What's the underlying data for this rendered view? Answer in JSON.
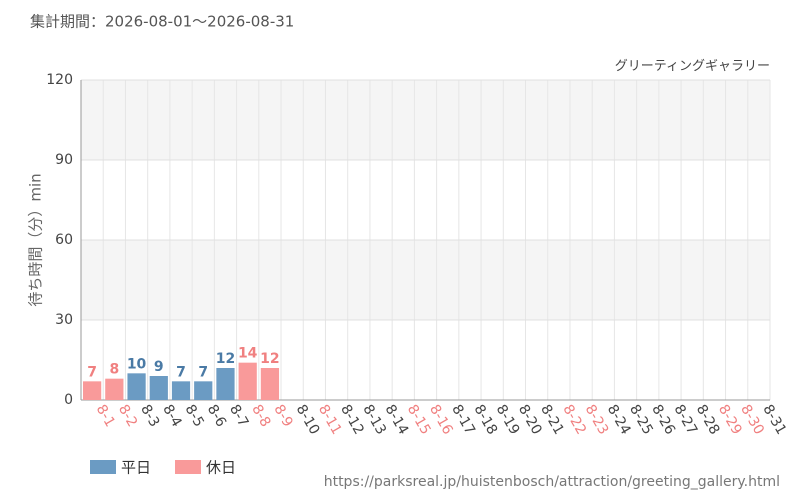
{
  "chart_data": {
    "type": "bar",
    "subtitle": "集計期間：2026-08-01～2026-08-31",
    "label": "グリーティングギャラリー",
    "y_label": "待ち時間（分）min",
    "source": "https://parksreal.jp/huistenbosch/attraction/greeting_gallery.html",
    "categories": [
      "8-1",
      "8-2",
      "8-3",
      "8-4",
      "8-5",
      "8-6",
      "8-7",
      "8-8",
      "8-9",
      "8-10",
      "8-11",
      "8-12",
      "8-13",
      "8-14",
      "8-15",
      "8-16",
      "8-17",
      "8-18",
      "8-19",
      "8-20",
      "8-21",
      "8-22",
      "8-23",
      "8-24",
      "8-25",
      "8-26",
      "8-27",
      "8-28",
      "8-29",
      "8-30",
      "8-31"
    ],
    "category_colors": [
      "#f08080",
      "#f08080",
      "#444",
      "#444",
      "#444",
      "#444",
      "#444",
      "#f08080",
      "#f08080",
      "#444",
      "#f08080",
      "#444",
      "#444",
      "#444",
      "#f08080",
      "#f08080",
      "#444",
      "#444",
      "#444",
      "#444",
      "#444",
      "#f08080",
      "#f08080",
      "#444",
      "#444",
      "#444",
      "#444",
      "#444",
      "#f08080",
      "#f08080",
      "#444"
    ],
    "series": [
      {
        "name": "平日",
        "color": "#6b9bc3",
        "label_color": "#4a7aa5",
        "values": [
          null,
          null,
          10,
          9,
          7,
          7,
          12,
          null,
          null,
          null,
          null,
          null,
          null,
          null,
          null,
          null,
          null,
          null,
          null,
          null,
          null,
          null,
          null,
          null,
          null,
          null,
          null,
          null,
          null,
          null,
          null
        ]
      },
      {
        "name": "休日",
        "color": "#f99a9a",
        "label_color": "#f08080",
        "values": [
          7,
          8,
          null,
          null,
          null,
          null,
          null,
          14,
          12,
          null,
          null,
          null,
          null,
          null,
          null,
          null,
          null,
          null,
          null,
          null,
          null,
          null,
          null,
          null,
          null,
          null,
          null,
          null,
          null,
          null,
          null
        ]
      }
    ],
    "ylim": [
      0,
      120
    ],
    "yticks": [
      0,
      30,
      60,
      90,
      120
    ],
    "grid": true
  }
}
